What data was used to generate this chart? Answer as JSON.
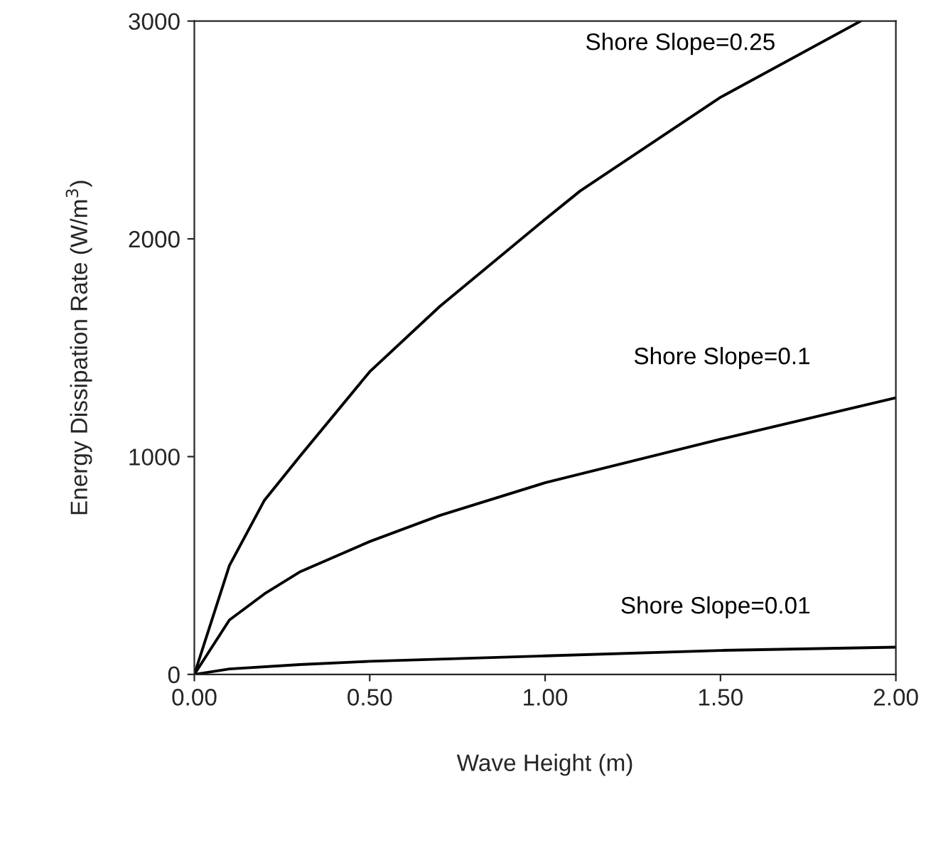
{
  "chart_data": {
    "type": "line",
    "xlabel": "Wave Height (m)",
    "ylabel": "Energy Dissipation Rate (W/m$^{3}$)",
    "xlim": [
      0,
      2
    ],
    "ylim": [
      0,
      3000
    ],
    "xticks": [
      {
        "value": 0,
        "label": "0.00"
      },
      {
        "value": 0.5,
        "label": "0.50"
      },
      {
        "value": 1,
        "label": "1.00"
      },
      {
        "value": 1.5,
        "label": "1.50"
      },
      {
        "value": 2,
        "label": "2.00"
      }
    ],
    "yticks": [
      0,
      1000,
      2000,
      3000
    ],
    "grid": false,
    "legend": false,
    "marker": "none",
    "line_style": "solid",
    "series": [
      {
        "name": "Shore Slope=0.25",
        "color": "#000000",
        "x": [
          0,
          0.1,
          0.2,
          0.3,
          0.5,
          0.7,
          1.0,
          1.1,
          1.5,
          1.9
        ],
        "values": [
          0,
          500,
          800,
          1000,
          1390,
          1690,
          2090,
          2220,
          2650,
          3000
        ]
      },
      {
        "name": "Shore Slope=0.1",
        "color": "#000000",
        "x": [
          0,
          0.1,
          0.2,
          0.3,
          0.5,
          0.7,
          1.0,
          1.5,
          2.0
        ],
        "values": [
          0,
          250,
          370,
          470,
          610,
          730,
          880,
          1080,
          1270
        ]
      },
      {
        "name": "Shore Slope=0.01",
        "color": "#000000",
        "x": [
          0,
          0.1,
          0.3,
          0.5,
          1.0,
          1.5,
          2.0
        ],
        "values": [
          0,
          25,
          45,
          60,
          85,
          110,
          125
        ]
      }
    ]
  }
}
